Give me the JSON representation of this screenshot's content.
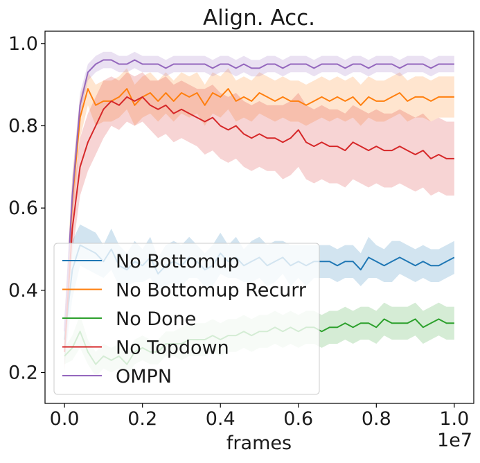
{
  "chart_data": {
    "type": "line",
    "title": "Align. Acc.",
    "xlabel": "frames",
    "ylabel": "",
    "x_offset_label": "1e7",
    "xlim": [
      -0.05,
      1.05
    ],
    "ylim": [
      0.125,
      1.03
    ],
    "x_ticks": [
      0.0,
      0.2,
      0.4,
      0.6,
      0.8,
      1.0
    ],
    "x_tick_labels": [
      "0.0",
      "0.2",
      "0.4",
      "0.6",
      "0.8",
      "1.0"
    ],
    "y_ticks": [
      0.2,
      0.4,
      0.6,
      0.8,
      1.0
    ],
    "y_tick_labels": [
      "0.2",
      "0.4",
      "0.6",
      "0.8",
      "1.0"
    ],
    "grid": false,
    "legend_position": "lower-left",
    "x": [
      0.0,
      0.02,
      0.04,
      0.06,
      0.08,
      0.1,
      0.12,
      0.14,
      0.16,
      0.18,
      0.2,
      0.22,
      0.24,
      0.26,
      0.28,
      0.3,
      0.32,
      0.34,
      0.36,
      0.38,
      0.4,
      0.42,
      0.44,
      0.46,
      0.48,
      0.5,
      0.52,
      0.54,
      0.56,
      0.58,
      0.6,
      0.62,
      0.64,
      0.66,
      0.68,
      0.7,
      0.72,
      0.74,
      0.76,
      0.78,
      0.8,
      0.82,
      0.84,
      0.86,
      0.88,
      0.9,
      0.92,
      0.94,
      0.96,
      0.98,
      1.0
    ],
    "series": [
      {
        "name": "No Bottomup",
        "color": "#1f77b4",
        "values": [
          0.28,
          0.45,
          0.51,
          0.5,
          0.49,
          0.47,
          0.5,
          0.46,
          0.45,
          0.47,
          0.46,
          0.48,
          0.44,
          0.46,
          0.47,
          0.46,
          0.48,
          0.47,
          0.45,
          0.46,
          0.49,
          0.47,
          0.48,
          0.46,
          0.47,
          0.48,
          0.46,
          0.47,
          0.48,
          0.46,
          0.47,
          0.46,
          0.47,
          0.47,
          0.47,
          0.46,
          0.47,
          0.47,
          0.45,
          0.48,
          0.47,
          0.46,
          0.47,
          0.48,
          0.47,
          0.46,
          0.47,
          0.46,
          0.46,
          0.47,
          0.48
        ],
        "band": [
          0.06,
          0.07,
          0.05,
          0.05,
          0.05,
          0.04,
          0.05,
          0.05,
          0.04,
          0.05,
          0.04,
          0.05,
          0.04,
          0.05,
          0.05,
          0.05,
          0.05,
          0.04,
          0.04,
          0.05,
          0.05,
          0.04,
          0.05,
          0.04,
          0.05,
          0.05,
          0.05,
          0.05,
          0.04,
          0.05,
          0.04,
          0.05,
          0.04,
          0.04,
          0.04,
          0.04,
          0.04,
          0.04,
          0.04,
          0.05,
          0.04,
          0.04,
          0.05,
          0.04,
          0.04,
          0.04,
          0.04,
          0.04,
          0.04,
          0.04,
          0.04
        ]
      },
      {
        "name": "No Bottomup Recurr",
        "color": "#ff7f0e",
        "values": [
          0.3,
          0.62,
          0.82,
          0.89,
          0.85,
          0.86,
          0.86,
          0.87,
          0.89,
          0.85,
          0.87,
          0.88,
          0.86,
          0.88,
          0.86,
          0.88,
          0.87,
          0.88,
          0.85,
          0.88,
          0.87,
          0.89,
          0.86,
          0.87,
          0.86,
          0.88,
          0.87,
          0.86,
          0.87,
          0.86,
          0.86,
          0.85,
          0.86,
          0.87,
          0.86,
          0.87,
          0.86,
          0.87,
          0.85,
          0.87,
          0.86,
          0.86,
          0.87,
          0.88,
          0.86,
          0.87,
          0.87,
          0.86,
          0.87,
          0.87,
          0.87
        ],
        "band": [
          0.04,
          0.06,
          0.05,
          0.04,
          0.05,
          0.05,
          0.05,
          0.05,
          0.05,
          0.05,
          0.05,
          0.05,
          0.05,
          0.05,
          0.05,
          0.05,
          0.05,
          0.05,
          0.05,
          0.05,
          0.05,
          0.05,
          0.05,
          0.05,
          0.05,
          0.05,
          0.05,
          0.05,
          0.05,
          0.05,
          0.05,
          0.05,
          0.05,
          0.05,
          0.05,
          0.05,
          0.05,
          0.05,
          0.05,
          0.05,
          0.05,
          0.05,
          0.05,
          0.05,
          0.05,
          0.05,
          0.05,
          0.05,
          0.05,
          0.05,
          0.05
        ]
      },
      {
        "name": "No Done",
        "color": "#2ca02c",
        "values": [
          0.24,
          0.26,
          0.3,
          0.25,
          0.22,
          0.24,
          0.23,
          0.24,
          0.22,
          0.25,
          0.26,
          0.25,
          0.25,
          0.27,
          0.27,
          0.27,
          0.28,
          0.28,
          0.28,
          0.29,
          0.28,
          0.29,
          0.29,
          0.3,
          0.29,
          0.3,
          0.3,
          0.31,
          0.3,
          0.31,
          0.3,
          0.31,
          0.31,
          0.3,
          0.31,
          0.31,
          0.32,
          0.31,
          0.32,
          0.32,
          0.31,
          0.33,
          0.32,
          0.32,
          0.32,
          0.33,
          0.31,
          0.32,
          0.33,
          0.32,
          0.32
        ],
        "band": [
          0.02,
          0.03,
          0.04,
          0.03,
          0.03,
          0.03,
          0.03,
          0.03,
          0.03,
          0.03,
          0.03,
          0.03,
          0.03,
          0.03,
          0.03,
          0.04,
          0.04,
          0.04,
          0.04,
          0.04,
          0.04,
          0.04,
          0.04,
          0.04,
          0.04,
          0.04,
          0.04,
          0.04,
          0.04,
          0.04,
          0.04,
          0.04,
          0.04,
          0.04,
          0.04,
          0.04,
          0.04,
          0.04,
          0.04,
          0.04,
          0.04,
          0.04,
          0.04,
          0.04,
          0.04,
          0.04,
          0.04,
          0.04,
          0.04,
          0.04,
          0.04
        ]
      },
      {
        "name": "No Topdown",
        "color": "#d62728",
        "values": [
          0.25,
          0.55,
          0.7,
          0.76,
          0.8,
          0.84,
          0.86,
          0.85,
          0.87,
          0.86,
          0.87,
          0.85,
          0.84,
          0.85,
          0.83,
          0.84,
          0.83,
          0.82,
          0.81,
          0.82,
          0.8,
          0.79,
          0.8,
          0.78,
          0.77,
          0.78,
          0.77,
          0.77,
          0.76,
          0.77,
          0.79,
          0.76,
          0.75,
          0.76,
          0.75,
          0.75,
          0.74,
          0.76,
          0.75,
          0.74,
          0.75,
          0.74,
          0.74,
          0.75,
          0.74,
          0.73,
          0.74,
          0.72,
          0.73,
          0.72,
          0.72
        ],
        "band": [
          0.05,
          0.06,
          0.07,
          0.07,
          0.07,
          0.07,
          0.06,
          0.06,
          0.06,
          0.06,
          0.06,
          0.06,
          0.07,
          0.07,
          0.07,
          0.07,
          0.07,
          0.07,
          0.08,
          0.08,
          0.08,
          0.08,
          0.08,
          0.08,
          0.08,
          0.08,
          0.08,
          0.08,
          0.09,
          0.09,
          0.09,
          0.09,
          0.09,
          0.09,
          0.09,
          0.09,
          0.09,
          0.09,
          0.09,
          0.09,
          0.09,
          0.09,
          0.09,
          0.09,
          0.09,
          0.09,
          0.09,
          0.09,
          0.09,
          0.09,
          0.09
        ]
      },
      {
        "name": "OMPN",
        "color": "#9467bd",
        "values": [
          0.3,
          0.63,
          0.85,
          0.93,
          0.95,
          0.96,
          0.96,
          0.95,
          0.95,
          0.96,
          0.95,
          0.95,
          0.95,
          0.94,
          0.95,
          0.95,
          0.95,
          0.95,
          0.95,
          0.94,
          0.95,
          0.95,
          0.94,
          0.95,
          0.94,
          0.94,
          0.95,
          0.95,
          0.94,
          0.95,
          0.95,
          0.95,
          0.94,
          0.95,
          0.95,
          0.95,
          0.94,
          0.95,
          0.95,
          0.94,
          0.95,
          0.95,
          0.95,
          0.94,
          0.95,
          0.95,
          0.95,
          0.94,
          0.95,
          0.95,
          0.95
        ],
        "band": [
          0.03,
          0.04,
          0.03,
          0.02,
          0.02,
          0.02,
          0.02,
          0.02,
          0.02,
          0.02,
          0.02,
          0.02,
          0.02,
          0.02,
          0.02,
          0.02,
          0.02,
          0.02,
          0.02,
          0.02,
          0.02,
          0.02,
          0.02,
          0.02,
          0.02,
          0.02,
          0.02,
          0.02,
          0.02,
          0.02,
          0.02,
          0.02,
          0.02,
          0.02,
          0.02,
          0.02,
          0.02,
          0.02,
          0.02,
          0.02,
          0.02,
          0.02,
          0.02,
          0.02,
          0.02,
          0.02,
          0.02,
          0.02,
          0.02,
          0.02,
          0.02
        ]
      }
    ]
  }
}
